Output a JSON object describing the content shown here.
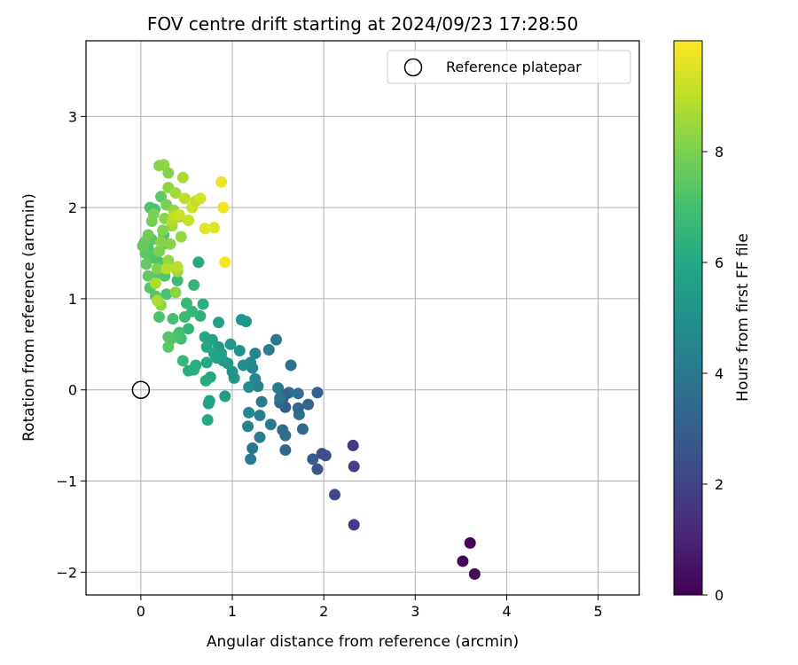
{
  "chart_data": {
    "type": "scatter",
    "title": "FOV centre drift starting at 2024/09/23 17:28:50",
    "xlabel": "Angular distance from reference (arcmin)",
    "ylabel": "Rotation from reference (arcmin)",
    "xlim": [
      -0.6,
      5.45
    ],
    "ylim": [
      -2.25,
      3.83
    ],
    "xticks": [
      "0",
      "1",
      "2",
      "3",
      "4",
      "5"
    ],
    "yticks": [
      "−2",
      "−1",
      "0",
      "1",
      "2",
      "3"
    ],
    "grid": true,
    "legend": {
      "placement": "top-right",
      "entries": [
        "Reference platepar"
      ]
    },
    "reference_point": {
      "x": 0,
      "y": 0
    },
    "colorbar": {
      "label": "Hours from first FF file",
      "range": [
        0,
        10
      ],
      "ticks": [
        "0",
        "2",
        "4",
        "6",
        "8"
      ],
      "colormap": "viridis"
    },
    "points": [
      {
        "x": 3.6,
        "y": -1.68,
        "c": 0.1
      },
      {
        "x": 3.52,
        "y": -1.88,
        "c": 0.2
      },
      {
        "x": 3.65,
        "y": -2.02,
        "c": 0.3
      },
      {
        "x": 2.33,
        "y": -1.48,
        "c": 1.8
      },
      {
        "x": 2.12,
        "y": -1.15,
        "c": 2.1
      },
      {
        "x": 2.32,
        "y": -0.61,
        "c": 1.7
      },
      {
        "x": 2.33,
        "y": -0.84,
        "c": 1.9
      },
      {
        "x": 1.98,
        "y": -0.7,
        "c": 2.3
      },
      {
        "x": 2.02,
        "y": -0.72,
        "c": 2.4
      },
      {
        "x": 1.93,
        "y": -0.87,
        "c": 2.6
      },
      {
        "x": 1.88,
        "y": -0.76,
        "c": 2.8
      },
      {
        "x": 1.93,
        "y": -0.03,
        "c": 3.0
      },
      {
        "x": 1.83,
        "y": -0.16,
        "c": 3.2
      },
      {
        "x": 1.77,
        "y": -0.43,
        "c": 3.4
      },
      {
        "x": 1.73,
        "y": -0.27,
        "c": 3.5
      },
      {
        "x": 1.72,
        "y": -0.2,
        "c": 3.3
      },
      {
        "x": 1.72,
        "y": -0.04,
        "c": 3.6
      },
      {
        "x": 1.64,
        "y": 0.27,
        "c": 3.7
      },
      {
        "x": 1.62,
        "y": -0.03,
        "c": 3.8
      },
      {
        "x": 1.58,
        "y": -0.05,
        "c": 3.1
      },
      {
        "x": 1.55,
        "y": -0.1,
        "c": 3.0
      },
      {
        "x": 1.58,
        "y": -0.19,
        "c": 2.9
      },
      {
        "x": 1.52,
        "y": -0.14,
        "c": 3.4
      },
      {
        "x": 1.55,
        "y": -0.44,
        "c": 3.5
      },
      {
        "x": 1.58,
        "y": -0.5,
        "c": 3.6
      },
      {
        "x": 1.58,
        "y": -0.66,
        "c": 3.3
      },
      {
        "x": 1.5,
        "y": 0.02,
        "c": 4.0
      },
      {
        "x": 1.52,
        "y": -0.09,
        "c": 3.9
      },
      {
        "x": 1.48,
        "y": 0.55,
        "c": 4.1
      },
      {
        "x": 1.4,
        "y": 0.44,
        "c": 4.2
      },
      {
        "x": 1.42,
        "y": -0.38,
        "c": 4.0
      },
      {
        "x": 1.32,
        "y": -0.13,
        "c": 4.1
      },
      {
        "x": 1.3,
        "y": -0.28,
        "c": 4.3
      },
      {
        "x": 1.3,
        "y": -0.52,
        "c": 4.2
      },
      {
        "x": 1.28,
        "y": 0.04,
        "c": 4.4
      },
      {
        "x": 1.25,
        "y": 0.12,
        "c": 4.5
      },
      {
        "x": 1.22,
        "y": -0.64,
        "c": 4.0
      },
      {
        "x": 1.2,
        "y": -0.76,
        "c": 4.1
      },
      {
        "x": 1.17,
        "y": -0.4,
        "c": 4.4
      },
      {
        "x": 1.18,
        "y": -0.25,
        "c": 4.6
      },
      {
        "x": 1.18,
        "y": 0.03,
        "c": 4.8
      },
      {
        "x": 1.2,
        "y": 0.3,
        "c": 4.7
      },
      {
        "x": 1.22,
        "y": 0.24,
        "c": 4.6
      },
      {
        "x": 1.25,
        "y": 0.4,
        "c": 4.5
      },
      {
        "x": 1.12,
        "y": 0.27,
        "c": 4.9
      },
      {
        "x": 1.08,
        "y": 0.43,
        "c": 5.0
      },
      {
        "x": 1.1,
        "y": 0.77,
        "c": 5.1
      },
      {
        "x": 1.15,
        "y": 0.75,
        "c": 5.2
      },
      {
        "x": 1.02,
        "y": 0.13,
        "c": 5.3
      },
      {
        "x": 1.0,
        "y": 0.2,
        "c": 5.1
      },
      {
        "x": 0.98,
        "y": 0.5,
        "c": 5.3
      },
      {
        "x": 0.95,
        "y": 0.29,
        "c": 5.4
      },
      {
        "x": 0.92,
        "y": -0.07,
        "c": 5.5
      },
      {
        "x": 0.9,
        "y": 0.32,
        "c": 5.5
      },
      {
        "x": 0.88,
        "y": 0.4,
        "c": 5.6
      },
      {
        "x": 0.85,
        "y": 0.74,
        "c": 5.6
      },
      {
        "x": 0.85,
        "y": 0.47,
        "c": 5.4
      },
      {
        "x": 0.83,
        "y": 0.35,
        "c": 5.7
      },
      {
        "x": 0.8,
        "y": 0.4,
        "c": 5.8
      },
      {
        "x": 0.78,
        "y": 0.55,
        "c": 5.7
      },
      {
        "x": 0.76,
        "y": 0.14,
        "c": 5.9
      },
      {
        "x": 0.75,
        "y": -0.12,
        "c": 5.6
      },
      {
        "x": 0.74,
        "y": -0.15,
        "c": 5.8
      },
      {
        "x": 0.73,
        "y": -0.33,
        "c": 6.0
      },
      {
        "x": 0.72,
        "y": 0.3,
        "c": 6.1
      },
      {
        "x": 0.72,
        "y": 0.47,
        "c": 6.0
      },
      {
        "x": 0.71,
        "y": 0.1,
        "c": 6.2
      },
      {
        "x": 0.7,
        "y": 0.58,
        "c": 5.9
      },
      {
        "x": 0.68,
        "y": 0.94,
        "c": 6.3
      },
      {
        "x": 0.65,
        "y": 0.81,
        "c": 6.4
      },
      {
        "x": 0.63,
        "y": 1.4,
        "c": 6.1
      },
      {
        "x": 0.6,
        "y": 0.27,
        "c": 6.3
      },
      {
        "x": 0.58,
        "y": 0.22,
        "c": 6.4
      },
      {
        "x": 0.58,
        "y": 1.15,
        "c": 6.5
      },
      {
        "x": 0.56,
        "y": 0.86,
        "c": 6.6
      },
      {
        "x": 0.52,
        "y": 0.21,
        "c": 6.2
      },
      {
        "x": 0.52,
        "y": 0.67,
        "c": 6.5
      },
      {
        "x": 0.5,
        "y": 0.95,
        "c": 6.7
      },
      {
        "x": 0.48,
        "y": 0.8,
        "c": 6.8
      },
      {
        "x": 0.46,
        "y": 0.32,
        "c": 6.6
      },
      {
        "x": 0.44,
        "y": 0.56,
        "c": 6.9
      },
      {
        "x": 0.42,
        "y": 0.63,
        "c": 7.0
      },
      {
        "x": 0.4,
        "y": 1.2,
        "c": 6.8
      },
      {
        "x": 0.38,
        "y": 0.58,
        "c": 7.1
      },
      {
        "x": 0.35,
        "y": 0.78,
        "c": 7.0
      },
      {
        "x": 0.33,
        "y": 0.56,
        "c": 7.2
      },
      {
        "x": 0.3,
        "y": 0.47,
        "c": 7.4
      },
      {
        "x": 0.3,
        "y": 0.58,
        "c": 7.3
      },
      {
        "x": 0.28,
        "y": 1.05,
        "c": 7.1
      },
      {
        "x": 0.26,
        "y": 1.25,
        "c": 7.2
      },
      {
        "x": 0.25,
        "y": 1.7,
        "c": 7.3
      },
      {
        "x": 0.24,
        "y": 1.6,
        "c": 7.0
      },
      {
        "x": 0.22,
        "y": 2.12,
        "c": 7.5
      },
      {
        "x": 0.2,
        "y": 0.8,
        "c": 7.1
      },
      {
        "x": 0.2,
        "y": 1.4,
        "c": 7.2
      },
      {
        "x": 0.18,
        "y": 1.28,
        "c": 7.3
      },
      {
        "x": 0.16,
        "y": 1.03,
        "c": 7.4
      },
      {
        "x": 0.15,
        "y": 1.98,
        "c": 7.0
      },
      {
        "x": 0.14,
        "y": 1.45,
        "c": 7.2
      },
      {
        "x": 0.12,
        "y": 1.65,
        "c": 7.4
      },
      {
        "x": 0.1,
        "y": 1.12,
        "c": 7.3
      },
      {
        "x": 0.1,
        "y": 2.0,
        "c": 7.1
      },
      {
        "x": 0.08,
        "y": 1.25,
        "c": 7.5
      },
      {
        "x": 0.08,
        "y": 1.55,
        "c": 7.2
      },
      {
        "x": 0.06,
        "y": 1.38,
        "c": 7.6
      },
      {
        "x": 0.05,
        "y": 1.5,
        "c": 7.4
      },
      {
        "x": 0.04,
        "y": 1.62,
        "c": 7.7
      },
      {
        "x": 0.02,
        "y": 1.58,
        "c": 7.6
      },
      {
        "x": 0.08,
        "y": 1.7,
        "c": 7.8
      },
      {
        "x": 0.12,
        "y": 1.85,
        "c": 7.9
      },
      {
        "x": 0.14,
        "y": 1.93,
        "c": 8.0
      },
      {
        "x": 0.18,
        "y": 1.33,
        "c": 8.1
      },
      {
        "x": 0.2,
        "y": 1.52,
        "c": 8.0
      },
      {
        "x": 0.22,
        "y": 1.62,
        "c": 8.2
      },
      {
        "x": 0.22,
        "y": 0.93,
        "c": 8.3
      },
      {
        "x": 0.24,
        "y": 1.75,
        "c": 8.1
      },
      {
        "x": 0.26,
        "y": 1.88,
        "c": 8.2
      },
      {
        "x": 0.28,
        "y": 2.03,
        "c": 8.0
      },
      {
        "x": 0.3,
        "y": 2.22,
        "c": 8.3
      },
      {
        "x": 0.3,
        "y": 1.42,
        "c": 8.4
      },
      {
        "x": 0.32,
        "y": 1.6,
        "c": 8.2
      },
      {
        "x": 0.34,
        "y": 1.8,
        "c": 8.5
      },
      {
        "x": 0.36,
        "y": 1.97,
        "c": 8.4
      },
      {
        "x": 0.38,
        "y": 1.07,
        "c": 8.3
      },
      {
        "x": 0.4,
        "y": 1.3,
        "c": 8.6
      },
      {
        "x": 0.42,
        "y": 1.9,
        "c": 8.5
      },
      {
        "x": 0.44,
        "y": 1.68,
        "c": 8.4
      },
      {
        "x": 0.46,
        "y": 2.33,
        "c": 8.7
      },
      {
        "x": 0.2,
        "y": 2.46,
        "c": 8.2
      },
      {
        "x": 0.25,
        "y": 2.47,
        "c": 8.3
      },
      {
        "x": 0.3,
        "y": 2.38,
        "c": 8.1
      },
      {
        "x": 0.38,
        "y": 2.16,
        "c": 8.6
      },
      {
        "x": 0.16,
        "y": 1.17,
        "c": 8.8
      },
      {
        "x": 0.18,
        "y": 0.98,
        "c": 8.7
      },
      {
        "x": 0.28,
        "y": 1.33,
        "c": 8.9
      },
      {
        "x": 0.34,
        "y": 1.84,
        "c": 8.8
      },
      {
        "x": 0.4,
        "y": 1.35,
        "c": 8.9
      },
      {
        "x": 0.48,
        "y": 2.1,
        "c": 9.0
      },
      {
        "x": 0.52,
        "y": 1.86,
        "c": 9.1
      },
      {
        "x": 0.56,
        "y": 2.0,
        "c": 9.2
      },
      {
        "x": 0.6,
        "y": 2.07,
        "c": 9.1
      },
      {
        "x": 0.65,
        "y": 2.1,
        "c": 9.3
      },
      {
        "x": 0.7,
        "y": 1.77,
        "c": 9.6
      },
      {
        "x": 0.8,
        "y": 1.78,
        "c": 9.5
      },
      {
        "x": 0.88,
        "y": 2.28,
        "c": 9.7
      },
      {
        "x": 0.9,
        "y": 2.0,
        "c": 9.8
      },
      {
        "x": 0.92,
        "y": 1.4,
        "c": 9.9
      },
      {
        "x": 0.36,
        "y": 1.9,
        "c": 9.0
      },
      {
        "x": 0.42,
        "y": 1.92,
        "c": 9.2
      }
    ]
  }
}
